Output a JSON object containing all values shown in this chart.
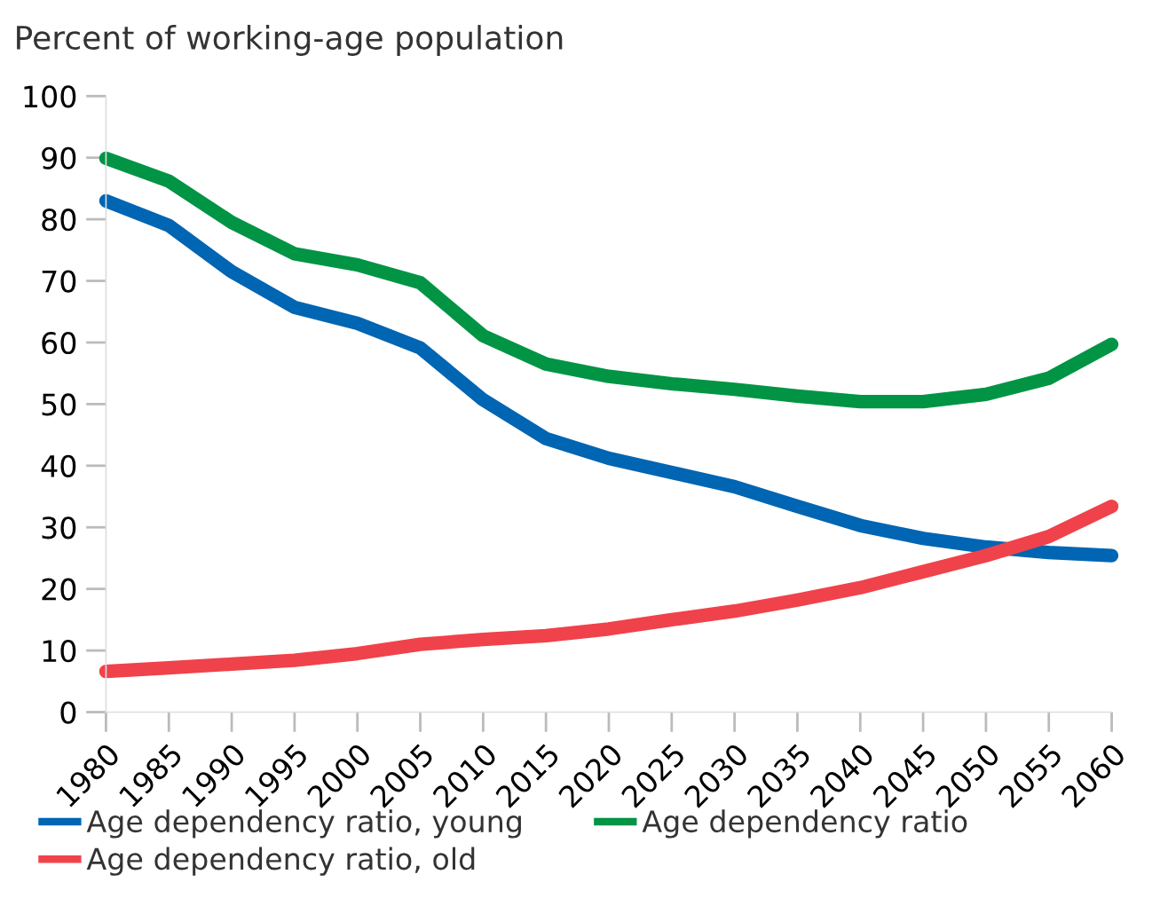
{
  "chart_data": {
    "type": "line",
    "ylabel": "Percent of working-age population",
    "x": [
      1980,
      1985,
      1990,
      1995,
      2000,
      2005,
      2010,
      2015,
      2020,
      2025,
      2030,
      2035,
      2040,
      2045,
      2050,
      2055,
      2060
    ],
    "series": [
      {
        "name": "Age dependency ratio, young",
        "color": "#0065b3",
        "values": [
          83,
          79,
          71.5,
          65.7,
          63.1,
          59.1,
          50.7,
          44.4,
          41.2,
          38.9,
          36.6,
          33.4,
          30.3,
          28.2,
          26.8,
          25.9,
          25.4
        ]
      },
      {
        "name": "Age dependency ratio, old",
        "color": "#f0424a",
        "values": [
          6.6,
          7.2,
          7.8,
          8.4,
          9.5,
          11,
          11.8,
          12.4,
          13.5,
          15,
          16.4,
          18.2,
          20.2,
          22.8,
          25.4,
          28.5,
          33.4
        ]
      },
      {
        "name": "Age dependency ratio",
        "color": "#009444",
        "values": [
          89.9,
          86.2,
          79.5,
          74.4,
          72.6,
          69.7,
          61.1,
          56.5,
          54.5,
          53.3,
          52.4,
          51.3,
          50.4,
          50.4,
          51.6,
          54.2,
          59.7
        ]
      }
    ],
    "xlim": [
      1980,
      2060
    ],
    "xticks": [
      1980,
      1985,
      1990,
      1995,
      2000,
      2005,
      2010,
      2015,
      2020,
      2025,
      2030,
      2035,
      2040,
      2045,
      2050,
      2055,
      2060
    ],
    "ylim": [
      0,
      100
    ],
    "yticks": [
      0,
      10,
      20,
      30,
      40,
      50,
      60,
      70,
      80,
      90,
      100
    ],
    "grid": false,
    "legend": "bottom",
    "marker": "none",
    "line_style": "solid"
  }
}
